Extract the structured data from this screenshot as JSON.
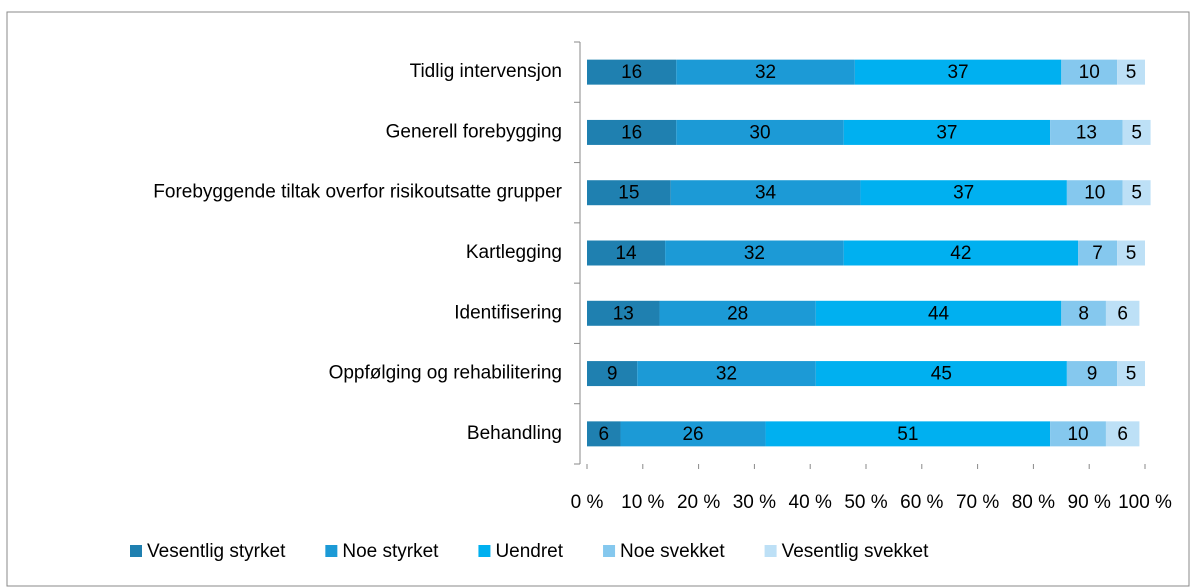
{
  "chart_data": {
    "type": "stacked_barh",
    "categories": [
      "Tidlig intervensjon",
      "Generell forebygging",
      "Forebyggende tiltak overfor risikoutsatte grupper",
      "Kartlegging",
      "Identifisering",
      "Oppfølging og rehabilitering",
      "Behandling"
    ],
    "series": [
      {
        "name": "Vesentlig styrket",
        "color": "#1f80b0",
        "values": [
          16,
          16,
          15,
          14,
          13,
          9,
          6
        ]
      },
      {
        "name": "Noe styrket",
        "color": "#1c9ad6",
        "values": [
          32,
          30,
          34,
          32,
          28,
          32,
          26
        ]
      },
      {
        "name": "Uendret",
        "color": "#00b0f0",
        "values": [
          37,
          37,
          37,
          42,
          44,
          45,
          51
        ]
      },
      {
        "name": "Noe svekket",
        "color": "#85c8ee",
        "values": [
          10,
          13,
          10,
          7,
          8,
          9,
          10
        ]
      },
      {
        "name": "Vesentlig svekket",
        "color": "#bde0f6",
        "values": [
          5,
          5,
          5,
          5,
          6,
          5,
          6
        ]
      }
    ],
    "xlim": [
      0,
      100
    ],
    "xticks": [
      {
        "value": 0,
        "label": "0 %"
      },
      {
        "value": 10,
        "label": "10 %"
      },
      {
        "value": 20,
        "label": "20 %"
      },
      {
        "value": 30,
        "label": "30 %"
      },
      {
        "value": 40,
        "label": "40 %"
      },
      {
        "value": 50,
        "label": "50 %"
      },
      {
        "value": 60,
        "label": "60 %"
      },
      {
        "value": 70,
        "label": "70 %"
      },
      {
        "value": 80,
        "label": "80 %"
      },
      {
        "value": 90,
        "label": "90 %"
      },
      {
        "value": 100,
        "label": "100 %"
      }
    ],
    "legend": "bottom"
  }
}
